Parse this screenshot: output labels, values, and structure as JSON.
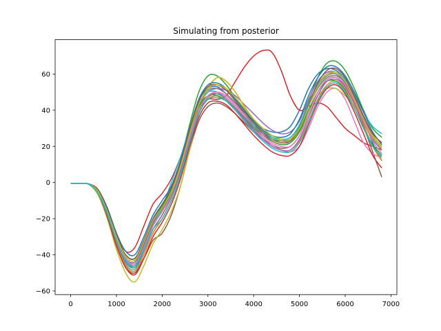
{
  "chart_data": {
    "type": "line",
    "title": "Simulating from posterior",
    "xlabel": "",
    "ylabel": "",
    "xlim": [
      -340,
      7130
    ],
    "ylim": [
      -62,
      79
    ],
    "xticks": [
      0,
      1000,
      2000,
      3000,
      4000,
      5000,
      6000,
      7000
    ],
    "yticks": [
      -60,
      -40,
      -20,
      0,
      20,
      40,
      60
    ],
    "grid": false,
    "legend": "none",
    "palette": [
      "#1f77b4",
      "#ff7f0e",
      "#2ca02c",
      "#d62728",
      "#9467bd",
      "#8c564b",
      "#e377c2",
      "#7f7f7f",
      "#bcbd22",
      "#17becf"
    ],
    "x": [
      0,
      200,
      400,
      600,
      800,
      1000,
      1200,
      1400,
      1600,
      1800,
      2000,
      2200,
      2400,
      2600,
      2800,
      3000,
      3200,
      3400,
      3600,
      3800,
      4000,
      4200,
      4400,
      4600,
      4800,
      5000,
      5200,
      5400,
      5600,
      5800,
      6000,
      6200,
      6400,
      6600,
      6800
    ],
    "series": [
      {
        "values": [
          -0.5,
          -0.5,
          -0.8,
          -5,
          -16,
          -30,
          -40,
          -42,
          -32,
          -20,
          -12,
          -4,
          10,
          28,
          45,
          52,
          53,
          49,
          44,
          39,
          34,
          30,
          28,
          28,
          31,
          40,
          52,
          60,
          63,
          62,
          57,
          48,
          35,
          22,
          12
        ]
      },
      {
        "values": [
          -0.5,
          -0.5,
          -1.0,
          -6,
          -18,
          -34,
          -46,
          -50,
          -40,
          -28,
          -20,
          -10,
          4,
          22,
          40,
          52,
          58,
          56,
          50,
          42,
          35,
          30,
          26,
          24,
          24,
          30,
          42,
          54,
          60,
          60,
          55,
          46,
          36,
          27,
          22
        ]
      },
      {
        "values": [
          -0.5,
          -0.5,
          -0.9,
          -5,
          -17,
          -32,
          -44,
          -46,
          -36,
          -22,
          -14,
          -4,
          12,
          32,
          50,
          59,
          59,
          54,
          47,
          40,
          34,
          29,
          25,
          23,
          24,
          31,
          45,
          58,
          66,
          67,
          62,
          52,
          40,
          30,
          25
        ]
      },
      {
        "values": [
          -0.5,
          -0.5,
          -0.8,
          -4,
          -14,
          -28,
          -38,
          -36,
          -24,
          -12,
          -6,
          2,
          14,
          28,
          40,
          46,
          46,
          48,
          56,
          64,
          70,
          73,
          72,
          62,
          48,
          40,
          42,
          44,
          42,
          36,
          30,
          26,
          22,
          20,
          18
        ]
      },
      {
        "values": [
          -0.5,
          -0.5,
          -0.9,
          -5,
          -16,
          -31,
          -42,
          -44,
          -34,
          -22,
          -14,
          -6,
          8,
          26,
          42,
          50,
          52,
          51,
          48,
          43,
          38,
          33,
          29,
          27,
          28,
          34,
          46,
          56,
          61,
          61,
          56,
          47,
          36,
          26,
          20
        ]
      },
      {
        "values": [
          -0.5,
          -0.5,
          -1.0,
          -6,
          -19,
          -35,
          -47,
          -50,
          -42,
          -32,
          -28,
          -18,
          -2,
          18,
          34,
          42,
          44,
          42,
          38,
          33,
          28,
          24,
          21,
          19,
          20,
          26,
          38,
          50,
          57,
          58,
          53,
          43,
          31,
          17,
          3
        ]
      },
      {
        "values": [
          -0.5,
          -0.5,
          -0.9,
          -5,
          -17,
          -32,
          -43,
          -45,
          -36,
          -24,
          -16,
          -6,
          8,
          25,
          40,
          48,
          50,
          47,
          42,
          36,
          30,
          25,
          21,
          18,
          17,
          20,
          30,
          42,
          50,
          52,
          46,
          34,
          22,
          16,
          14
        ]
      },
      {
        "values": [
          -0.5,
          -0.5,
          -0.9,
          -5,
          -17,
          -31,
          -42,
          -44,
          -35,
          -23,
          -15,
          -6,
          8,
          26,
          43,
          51,
          52,
          49,
          44,
          38,
          32,
          27,
          23,
          21,
          22,
          29,
          42,
          53,
          59,
          60,
          55,
          45,
          34,
          24,
          18
        ]
      },
      {
        "values": [
          -0.5,
          -0.5,
          -1.1,
          -7,
          -20,
          -37,
          -50,
          -55,
          -46,
          -34,
          -26,
          -16,
          -2,
          18,
          38,
          52,
          58,
          56,
          50,
          42,
          35,
          29,
          25,
          23,
          23,
          28,
          38,
          48,
          52,
          52,
          48,
          42,
          34,
          26,
          20
        ]
      },
      {
        "values": [
          -0.5,
          -0.5,
          -1.0,
          -6,
          -18,
          -33,
          -45,
          -48,
          -38,
          -24,
          -14,
          0,
          14,
          30,
          44,
          50,
          50,
          46,
          41,
          36,
          32,
          28,
          25,
          24,
          25,
          32,
          44,
          54,
          60,
          61,
          57,
          49,
          39,
          31,
          27
        ]
      },
      {
        "values": [
          -0.5,
          -0.5,
          -0.8,
          -4,
          -14,
          -28,
          -38,
          -40,
          -30,
          -18,
          -10,
          -2,
          12,
          30,
          46,
          54,
          55,
          52,
          46,
          40,
          34,
          29,
          26,
          25,
          27,
          35,
          48,
          58,
          64,
          64,
          59,
          50,
          39,
          28,
          21
        ]
      },
      {
        "values": [
          -0.5,
          -0.5,
          -1.0,
          -6,
          -18,
          -34,
          -46,
          -49,
          -40,
          -28,
          -20,
          -10,
          4,
          22,
          38,
          46,
          48,
          45,
          40,
          34,
          29,
          24,
          20,
          18,
          18,
          23,
          34,
          46,
          54,
          56,
          52,
          43,
          32,
          20,
          12
        ]
      },
      {
        "values": [
          -0.5,
          -0.5,
          -0.9,
          -5,
          -16,
          -30,
          -40,
          -42,
          -33,
          -21,
          -13,
          -4,
          10,
          27,
          42,
          48,
          48,
          45,
          40,
          35,
          30,
          26,
          23,
          21,
          22,
          28,
          40,
          50,
          56,
          56,
          51,
          41,
          30,
          21,
          15
        ]
      },
      {
        "values": [
          -0.5,
          -0.5,
          -1.0,
          -6,
          -19,
          -35,
          -47,
          -51,
          -42,
          -30,
          -22,
          -12,
          2,
          20,
          36,
          44,
          45,
          43,
          38,
          32,
          26,
          21,
          17,
          15,
          15,
          20,
          32,
          44,
          52,
          54,
          49,
          39,
          27,
          15,
          8
        ]
      },
      {
        "values": [
          -0.5,
          -0.5,
          -0.9,
          -5,
          -17,
          -32,
          -43,
          -46,
          -38,
          -26,
          -18,
          -8,
          6,
          24,
          40,
          48,
          49,
          46,
          41,
          35,
          29,
          24,
          20,
          18,
          18,
          24,
          36,
          48,
          56,
          57,
          53,
          44,
          33,
          24,
          18
        ]
      },
      {
        "values": [
          -0.5,
          -0.5,
          -0.8,
          -4,
          -15,
          -29,
          -40,
          -42,
          -32,
          -20,
          -12,
          -3,
          11,
          29,
          45,
          53,
          54,
          51,
          45,
          39,
          33,
          28,
          24,
          22,
          23,
          30,
          43,
          55,
          62,
          63,
          58,
          48,
          37,
          27,
          22
        ]
      },
      {
        "values": [
          -0.5,
          -0.5,
          -0.9,
          -5,
          -16,
          -31,
          -42,
          -45,
          -36,
          -24,
          -16,
          -7,
          8,
          25,
          40,
          48,
          50,
          48,
          43,
          37,
          31,
          26,
          22,
          20,
          20,
          26,
          38,
          50,
          57,
          58,
          54,
          45,
          34,
          23,
          16
        ]
      },
      {
        "values": [
          -0.5,
          -0.5,
          -1.0,
          -6,
          -18,
          -33,
          -44,
          -47,
          -38,
          -26,
          -18,
          -8,
          6,
          22,
          38,
          47,
          49,
          46,
          41,
          36,
          31,
          27,
          24,
          23,
          24,
          30,
          42,
          52,
          58,
          59,
          55,
          46,
          35,
          25,
          19
        ]
      },
      {
        "values": [
          -0.5,
          -0.5,
          -0.9,
          -5,
          -16,
          -30,
          -41,
          -43,
          -33,
          -21,
          -14,
          -5,
          9,
          27,
          43,
          52,
          54,
          52,
          47,
          41,
          35,
          30,
          26,
          24,
          24,
          30,
          42,
          53,
          60,
          61,
          56,
          46,
          35,
          25,
          19
        ]
      },
      {
        "values": [
          -0.5,
          -0.5,
          -1.0,
          -6,
          -17,
          -32,
          -43,
          -46,
          -37,
          -26,
          -20,
          -10,
          4,
          22,
          38,
          46,
          47,
          45,
          40,
          34,
          28,
          23,
          19,
          17,
          17,
          22,
          33,
          45,
          53,
          55,
          50,
          41,
          30,
          20,
          14
        ]
      }
    ]
  }
}
